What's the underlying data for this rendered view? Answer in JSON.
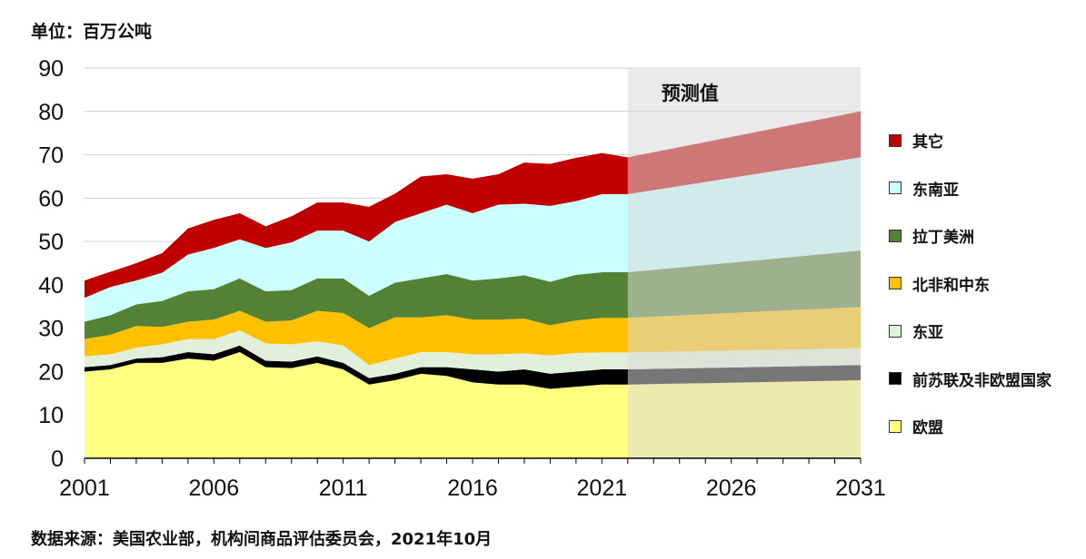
{
  "header": {
    "unit_label": "单位：百万公吨"
  },
  "footer": {
    "source": "数据来源：美国农业部，机构间商品评估委员会，2021年10月"
  },
  "forecast": {
    "label": "预测值",
    "start_year": 2022,
    "shade_color": "#d9d9d9"
  },
  "chart_data": {
    "type": "area",
    "stacked": true,
    "title": "",
    "xlabel": "",
    "ylabel": "",
    "xlim": [
      2001,
      2031
    ],
    "ylim": [
      0,
      90
    ],
    "y_ticks": [
      0,
      10,
      20,
      30,
      40,
      50,
      60,
      70,
      80,
      90
    ],
    "x_ticks": [
      2001,
      2006,
      2011,
      2016,
      2021,
      2026,
      2031
    ],
    "grid": "horizontal",
    "legend_position": "right",
    "x": [
      2001,
      2002,
      2003,
      2004,
      2005,
      2006,
      2007,
      2008,
      2009,
      2010,
      2011,
      2012,
      2013,
      2014,
      2015,
      2016,
      2017,
      2018,
      2019,
      2020,
      2021,
      2022,
      2031
    ],
    "series": [
      {
        "name": "欧盟",
        "color": "#ffff80",
        "values": [
          20,
          20.5,
          22,
          22,
          23,
          22.5,
          24.5,
          21,
          20.8,
          22,
          20.5,
          17,
          18,
          19.5,
          19,
          17.5,
          17,
          17,
          16,
          16.5,
          17,
          17,
          18
        ]
      },
      {
        "name": "前苏联及非欧盟国家",
        "color": "#000000",
        "values": [
          1,
          1,
          1,
          1.3,
          1.5,
          1.5,
          1.5,
          1.5,
          1.5,
          1.5,
          1.5,
          1.5,
          1.5,
          1.5,
          2,
          3,
          3,
          3.5,
          3.5,
          3.5,
          3.5,
          3.5,
          3.5
        ]
      },
      {
        "name": "东亚",
        "color": "#e2efda",
        "values": [
          2.5,
          2.5,
          2.5,
          3,
          3,
          3.5,
          3.5,
          4,
          4,
          3.5,
          4,
          3,
          3.5,
          3.5,
          3.5,
          3.5,
          4,
          3.7,
          4.2,
          4.3,
          3.9,
          3.9,
          3.9
        ]
      },
      {
        "name": "北非和中东",
        "color": "#ffc000",
        "values": [
          4,
          4.5,
          5,
          4,
          4,
          4.5,
          4.5,
          5,
          5.5,
          7,
          7.5,
          8.5,
          9.5,
          8,
          8.5,
          8,
          8,
          8,
          7,
          7.5,
          8,
          8,
          9.5
        ]
      },
      {
        "name": "拉丁美洲",
        "color": "#548235",
        "values": [
          4,
          4.5,
          5,
          6,
          7,
          7,
          7.5,
          7,
          7,
          7.5,
          8,
          7.5,
          8,
          9,
          9.5,
          9,
          9.5,
          10,
          10,
          10.5,
          10.5,
          10.5,
          13
        ]
      },
      {
        "name": "东南亚",
        "color": "#ccffff",
        "values": [
          5.5,
          6.5,
          5.5,
          6.5,
          8.5,
          9.5,
          9,
          10,
          11,
          11,
          11,
          12.5,
          14,
          15,
          16,
          15.5,
          17,
          16.5,
          17.5,
          17,
          18,
          18,
          21.5
        ]
      },
      {
        "name": "其它",
        "color": "#c00000",
        "values": [
          4,
          3.5,
          4,
          4.5,
          6,
          6.5,
          6,
          5,
          6,
          6.5,
          6.5,
          8,
          6.5,
          8.5,
          7,
          8,
          7,
          9.5,
          9.7,
          10,
          9.5,
          8.5,
          10.6
        ]
      }
    ]
  }
}
